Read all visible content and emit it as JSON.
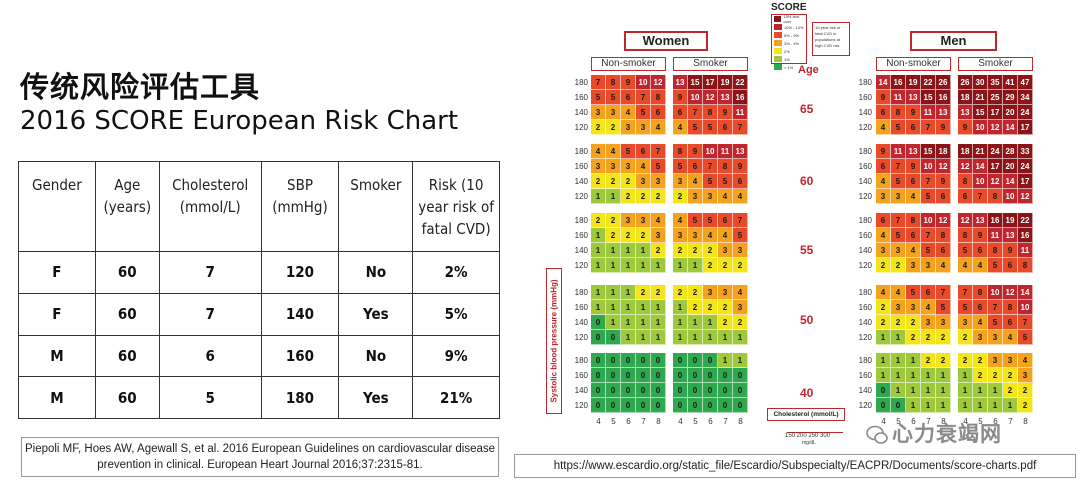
{
  "title_cn": "传统风险评估工具",
  "title_en": "2016 SCORE European Risk Chart",
  "table": {
    "headers": [
      "Gender",
      "Age\n(years)",
      "Cholesterol\n(mmol/L)",
      "SBP\n(mmHg)",
      "Smoker",
      "Risk (10\nyear risk of\nfatal CVD)"
    ],
    "rows": [
      [
        "F",
        "60",
        "7",
        "120",
        "No",
        "2%"
      ],
      [
        "F",
        "60",
        "7",
        "140",
        "Yes",
        "5%"
      ],
      [
        "M",
        "60",
        "6",
        "160",
        "No",
        "9%"
      ],
      [
        "M",
        "60",
        "5",
        "180",
        "Yes",
        "21%"
      ]
    ]
  },
  "reference": "Piepoli MF, Hoes AW, Agewall S, et al. 2016 European Guidelines on cardiovascular disease prevention in clinical. European Heart Journal 2016;37:2315-81.",
  "url": "https://www.escardio.org/static_file/Escardio/Subspecialty/EACPR/Documents/score-charts.pdf",
  "chart": {
    "logo": "SCORE",
    "women_label": "Women",
    "men_label": "Men",
    "non_smoker_label": "Non-smoker",
    "smoker_label": "Smoker",
    "age_label": "Age",
    "ages": [
      "65",
      "60",
      "55",
      "50",
      "40"
    ],
    "sbp_labels": [
      "180",
      "160",
      "140",
      "120"
    ],
    "chol_labels": [
      "4",
      "5",
      "6",
      "7",
      "8"
    ],
    "y_axis_label": "Systolic blood pressure (mmHg)",
    "chol_box": "Cholesterol (mmol/L)",
    "mgdl_ticks": "150 200 250 300",
    "mgdl_unit": "mg/dL",
    "legend": [
      {
        "label": "15% and over",
        "color": "#8b1418"
      },
      {
        "label": "10% - 14%",
        "color": "#c0262d"
      },
      {
        "label": "5% - 9%",
        "color": "#e84a2a"
      },
      {
        "label": "3% - 4%",
        "color": "#f5a21e"
      },
      {
        "label": "2%",
        "color": "#f3e51a"
      },
      {
        "label": "1%",
        "color": "#9ec93c"
      },
      {
        "label": "< 1%",
        "color": "#2fa84f"
      }
    ],
    "note": "10-year risk of fatal CVD in populations at high CVD risk",
    "women_nonsmoker": [
      [
        [
          7,
          8,
          9,
          10,
          12
        ],
        [
          5,
          5,
          6,
          7,
          8
        ],
        [
          3,
          3,
          4,
          5,
          6
        ],
        [
          2,
          2,
          3,
          3,
          4
        ]
      ],
      [
        [
          4,
          4,
          5,
          6,
          7
        ],
        [
          3,
          3,
          3,
          4,
          5
        ],
        [
          2,
          2,
          2,
          3,
          3
        ],
        [
          1,
          1,
          2,
          2,
          2
        ]
      ],
      [
        [
          2,
          2,
          3,
          3,
          4
        ],
        [
          1,
          2,
          2,
          2,
          3
        ],
        [
          1,
          1,
          1,
          1,
          2
        ],
        [
          1,
          1,
          1,
          1,
          1
        ]
      ],
      [
        [
          1,
          1,
          1,
          2,
          2
        ],
        [
          1,
          1,
          1,
          1,
          1
        ],
        [
          0,
          1,
          1,
          1,
          1
        ],
        [
          0,
          0,
          1,
          1,
          1
        ]
      ],
      [
        [
          0,
          0,
          0,
          0,
          0
        ],
        [
          0,
          0,
          0,
          0,
          0
        ],
        [
          0,
          0,
          0,
          0,
          0
        ],
        [
          0,
          0,
          0,
          0,
          0
        ]
      ]
    ],
    "women_smoker": [
      [
        [
          13,
          15,
          17,
          19,
          22
        ],
        [
          9,
          10,
          12,
          13,
          16
        ],
        [
          6,
          7,
          8,
          9,
          11
        ],
        [
          4,
          5,
          5,
          6,
          7
        ]
      ],
      [
        [
          8,
          9,
          10,
          11,
          13
        ],
        [
          5,
          6,
          7,
          8,
          9
        ],
        [
          3,
          4,
          5,
          5,
          6
        ],
        [
          2,
          3,
          3,
          4,
          4
        ]
      ],
      [
        [
          4,
          5,
          5,
          6,
          7
        ],
        [
          3,
          3,
          4,
          4,
          5
        ],
        [
          2,
          2,
          2,
          3,
          3
        ],
        [
          1,
          1,
          2,
          2,
          2
        ]
      ],
      [
        [
          2,
          2,
          3,
          3,
          4
        ],
        [
          1,
          2,
          2,
          2,
          3
        ],
        [
          1,
          1,
          1,
          2,
          2
        ],
        [
          1,
          1,
          1,
          1,
          1
        ]
      ],
      [
        [
          0,
          0,
          0,
          1,
          1
        ],
        [
          0,
          0,
          0,
          0,
          0
        ],
        [
          0,
          0,
          0,
          0,
          0
        ],
        [
          0,
          0,
          0,
          0,
          0
        ]
      ]
    ],
    "men_nonsmoker": [
      [
        [
          14,
          16,
          19,
          22,
          26
        ],
        [
          9,
          11,
          13,
          15,
          16
        ],
        [
          6,
          8,
          9,
          11,
          13
        ],
        [
          4,
          5,
          6,
          7,
          9
        ]
      ],
      [
        [
          9,
          11,
          13,
          15,
          18
        ],
        [
          6,
          7,
          9,
          10,
          12
        ],
        [
          4,
          5,
          6,
          7,
          9
        ],
        [
          3,
          3,
          4,
          5,
          6
        ]
      ],
      [
        [
          6,
          7,
          8,
          10,
          12
        ],
        [
          4,
          5,
          6,
          7,
          8
        ],
        [
          3,
          3,
          4,
          5,
          6
        ],
        [
          2,
          2,
          3,
          3,
          4
        ]
      ],
      [
        [
          4,
          4,
          5,
          6,
          7
        ],
        [
          2,
          3,
          3,
          4,
          5
        ],
        [
          2,
          2,
          2,
          3,
          3
        ],
        [
          1,
          1,
          2,
          2,
          2
        ]
      ],
      [
        [
          1,
          1,
          1,
          2,
          2
        ],
        [
          1,
          1,
          1,
          1,
          1
        ],
        [
          0,
          1,
          1,
          1,
          1
        ],
        [
          0,
          0,
          1,
          1,
          1
        ]
      ]
    ],
    "men_smoker": [
      [
        [
          26,
          30,
          35,
          41,
          47
        ],
        [
          18,
          21,
          25,
          29,
          34
        ],
        [
          13,
          15,
          17,
          20,
          24
        ],
        [
          9,
          10,
          12,
          14,
          17
        ]
      ],
      [
        [
          18,
          21,
          24,
          28,
          33
        ],
        [
          12,
          14,
          17,
          20,
          24
        ],
        [
          8,
          10,
          12,
          14,
          17
        ],
        [
          6,
          7,
          8,
          10,
          12
        ]
      ],
      [
        [
          12,
          13,
          16,
          19,
          22
        ],
        [
          8,
          9,
          11,
          13,
          16
        ],
        [
          5,
          6,
          8,
          9,
          11
        ],
        [
          4,
          4,
          5,
          6,
          8
        ]
      ],
      [
        [
          7,
          8,
          10,
          12,
          14
        ],
        [
          5,
          6,
          7,
          8,
          10
        ],
        [
          3,
          4,
          5,
          6,
          7
        ],
        [
          2,
          3,
          3,
          4,
          5
        ]
      ],
      [
        [
          2,
          2,
          3,
          3,
          4
        ],
        [
          1,
          2,
          2,
          2,
          3
        ],
        [
          1,
          1,
          1,
          2,
          2
        ],
        [
          1,
          1,
          1,
          1,
          2
        ]
      ]
    ]
  },
  "watermark": "心力衰竭网"
}
